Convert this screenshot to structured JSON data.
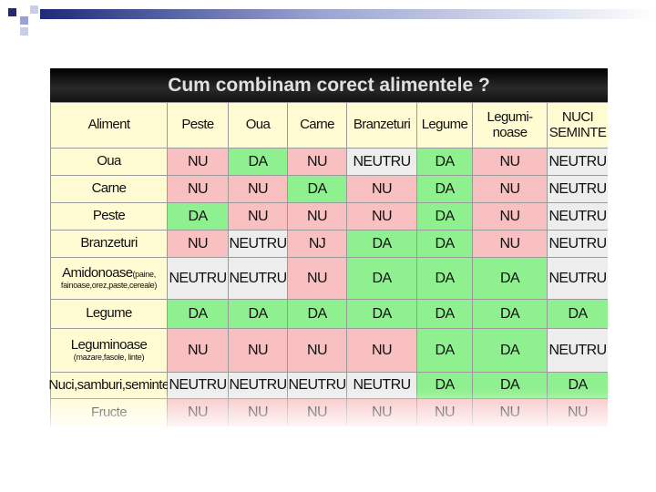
{
  "title": "Cum combinam corect alimentele ?",
  "table": {
    "header": [
      "Aliment",
      "Peste",
      "Oua",
      "Carne",
      "Branzeturi",
      "Legume",
      "Legumi-\nnoase",
      "NUCI\nSEMINTE"
    ],
    "cell_colors": {
      "NU": "#f8c0c0",
      "NJ": "#f8c0c0",
      "DA": "#8ef08e",
      "NEUTRU": "#ededed"
    },
    "rows": [
      {
        "label": "Oua",
        "cells": [
          "NU",
          "DA",
          "NU",
          "NEUTRU",
          "DA",
          "NU",
          "NEUTRU"
        ]
      },
      {
        "label": "Carne",
        "cells": [
          "NU",
          "NU",
          "DA",
          "NU",
          "DA",
          "NU",
          "NEUTRU"
        ]
      },
      {
        "label": "Peste",
        "cells": [
          "DA",
          "NU",
          "NU",
          "NU",
          "DA",
          "NU",
          "NEUTRU"
        ]
      },
      {
        "label": "Branzeturi",
        "cells": [
          "NU",
          "NEUTRU",
          "NJ",
          "DA",
          "DA",
          "NU",
          "NEUTRU"
        ]
      },
      {
        "label": "Amidonoase",
        "note": "(paine,",
        "note2": "fainoase,orez,paste,cereale)",
        "cells": [
          "NEUTRU",
          "NEUTRU",
          "NU",
          "DA",
          "DA",
          "DA",
          "NEUTRU"
        ]
      },
      {
        "label": "Legume",
        "cells": [
          "DA",
          "DA",
          "DA",
          "DA",
          "DA",
          "DA",
          "DA"
        ]
      },
      {
        "label": "Leguminoase",
        "note2": "(mazare,fasole, linte)",
        "cells": [
          "NU",
          "NU",
          "NU",
          "NU",
          "DA",
          "DA",
          "NEUTRU"
        ]
      },
      {
        "label": "Nuci,samburi,seminte",
        "cells": [
          "NEUTRU",
          "NEUTRU",
          "NEUTRU",
          "NEUTRU",
          "DA",
          "DA",
          "DA"
        ]
      },
      {
        "label": "Fructe",
        "cells": [
          "NU",
          "NU",
          "NU",
          "NU",
          "NU",
          "NU",
          "NU"
        ]
      }
    ]
  }
}
